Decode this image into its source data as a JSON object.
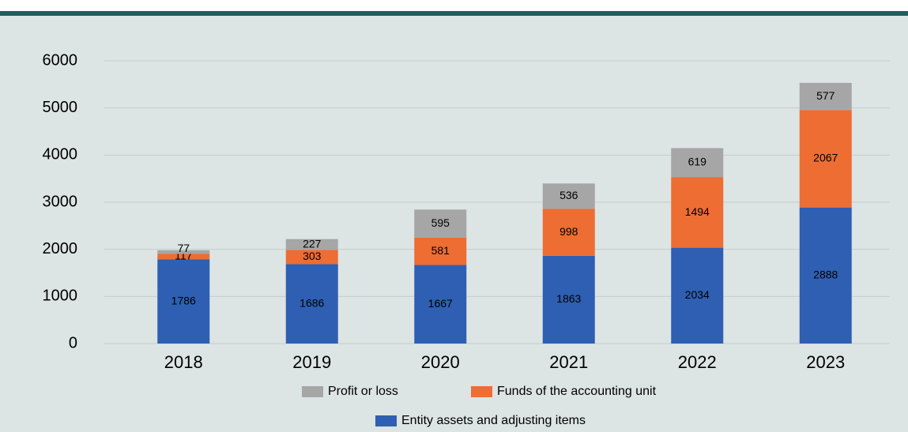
{
  "chart_data": {
    "type": "stacked_bar",
    "categories": [
      "2018",
      "2019",
      "2020",
      "2021",
      "2022",
      "2023"
    ],
    "series": [
      {
        "name": "Entity assets and adjusting items",
        "color": "#2e5fb2",
        "values": [
          1786,
          1686,
          1667,
          1863,
          2034,
          2888
        ]
      },
      {
        "name": "Funds of the accounting unit",
        "color": "#ed6d33",
        "values": [
          117,
          303,
          581,
          998,
          1494,
          2067
        ]
      },
      {
        "name": "Profit or loss",
        "color": "#a6a6a6",
        "values": [
          77,
          227,
          595,
          536,
          619,
          577
        ]
      }
    ],
    "ylim": [
      0,
      6000
    ],
    "yticks": [
      0,
      1000,
      2000,
      3000,
      4000,
      5000,
      6000
    ],
    "grid": true
  }
}
